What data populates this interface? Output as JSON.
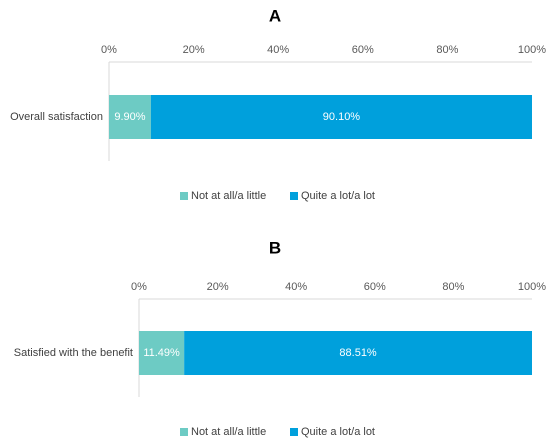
{
  "chart_data": [
    {
      "type": "bar",
      "orientation": "horizontal",
      "stacked": true,
      "title": "A",
      "categories": [
        "Overall satisfaction"
      ],
      "series": [
        {
          "name": "Not at all/a little",
          "values": [
            9.9
          ],
          "labels": [
            "9.90%"
          ],
          "color": "#6DCBC4"
        },
        {
          "name": "Quite a lot/a lot",
          "values": [
            90.1
          ],
          "labels": [
            "90.10%"
          ],
          "color": "#00A0DC"
        }
      ],
      "xlim": [
        0,
        100
      ],
      "xticks": [
        "0%",
        "20%",
        "40%",
        "60%",
        "80%",
        "100%"
      ],
      "xaxis_position": "top",
      "grid": false,
      "legend_position": "bottom"
    },
    {
      "type": "bar",
      "orientation": "horizontal",
      "stacked": true,
      "title": "B",
      "categories": [
        "Satisfied with the benefit"
      ],
      "series": [
        {
          "name": "Not at all/a little",
          "values": [
            11.49
          ],
          "labels": [
            "11.49%"
          ],
          "color": "#6DCBC4"
        },
        {
          "name": "Quite a lot/a lot",
          "values": [
            88.51
          ],
          "labels": [
            "88.51%"
          ],
          "color": "#00A0DC"
        }
      ],
      "xlim": [
        0,
        100
      ],
      "xticks": [
        "0%",
        "20%",
        "40%",
        "60%",
        "80%",
        "100%"
      ],
      "xaxis_position": "top",
      "grid": false,
      "legend_position": "bottom"
    }
  ]
}
